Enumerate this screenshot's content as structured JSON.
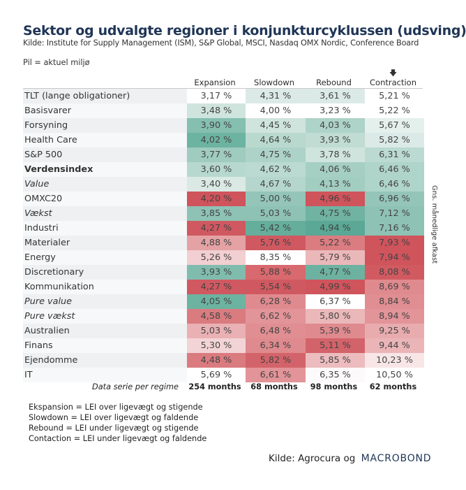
{
  "title": "Sektor og udvalgte regioner i konjunkturcyklussen (udsving)",
  "subtitle": "Kilde: Institute for Supply Management (ISM), S&P Global, MSCI, Nasdaq OMX Nordic, Conference Board",
  "note": "Pil = aktuel miljø",
  "current_regime_marker": {
    "icon": "arrow-down-icon",
    "glyph": "🡇",
    "column": "Contraction"
  },
  "vertical_label": "Gns. månedlige afkast",
  "chart_data": {
    "type": "table",
    "title": "Sektor og udvalgte regioner i konjunkturcyklussen (udsving)",
    "columns": [
      "Expansion",
      "Slowdown",
      "Rebound",
      "Contraction"
    ],
    "rows": [
      {
        "label": "TLT (lange obligationer)",
        "style": "normal",
        "values": [
          "3,17 %",
          "4,31 %",
          "3,61 %",
          "5,21 %"
        ],
        "colors": [
          "#ffffff",
          "#dbeae6",
          "#dbeae6",
          "#ffffff"
        ]
      },
      {
        "label": "Basisvarer",
        "style": "normal",
        "values": [
          "3,48 %",
          "4,00 %",
          "3,23 %",
          "5,22 %"
        ],
        "colors": [
          "#cfe4dd",
          "#ffffff",
          "#ffffff",
          "#ffffff"
        ]
      },
      {
        "label": "Forsyning",
        "style": "normal",
        "values": [
          "3,90 %",
          "4,45 %",
          "4,03 %",
          "5,67 %"
        ],
        "colors": [
          "#85bfb0",
          "#cfe4dd",
          "#aed3c8",
          "#e4f0ec"
        ]
      },
      {
        "label": "Health Care",
        "style": "normal",
        "values": [
          "4,02 %",
          "4,64 %",
          "3,93 %",
          "5,82 %"
        ],
        "colors": [
          "#6db3a1",
          "#b9d9cf",
          "#c0dcd3",
          "#dbeae6"
        ]
      },
      {
        "label": "S&P 500",
        "style": "normal",
        "values": [
          "3,77 %",
          "4,75 %",
          "3,78 %",
          "6,31 %"
        ],
        "colors": [
          "#a0cbbf",
          "#add2c7",
          "#cfe4dd",
          "#bbdad1"
        ]
      },
      {
        "label": "Verdensindex",
        "style": "bold",
        "values": [
          "3,60 %",
          "4,62 %",
          "4,06 %",
          "6,46 %"
        ],
        "colors": [
          "#b7d8ce",
          "#bbdad1",
          "#a6cfc3",
          "#afd4c9"
        ]
      },
      {
        "label": "Value",
        "style": "italic",
        "values": [
          "3,40 %",
          "4,67 %",
          "4,13 %",
          "6,46 %"
        ],
        "colors": [
          "#dae9e4",
          "#b5d6cc",
          "#a2cdc1",
          "#afd4c9"
        ]
      },
      {
        "label": "OMXC20",
        "style": "normal",
        "values": [
          "4,20 %",
          "5,00 %",
          "4,96 %",
          "6,96 %"
        ],
        "colors": [
          "#cf545c",
          "#94c5b8",
          "#cf545c",
          "#94c5b8"
        ]
      },
      {
        "label": "Vækst",
        "style": "italic",
        "values": [
          "3,85 %",
          "5,03 %",
          "4,75 %",
          "7,12 %"
        ],
        "colors": [
          "#8ec2b4",
          "#8ec2b4",
          "#70b3a2",
          "#8ec2b4"
        ]
      },
      {
        "label": "Industri",
        "style": "normal",
        "values": [
          "4,27 %",
          "5,42 %",
          "4,94 %",
          "7,16 %"
        ],
        "colors": [
          "#d05961",
          "#66ae9c",
          "#5ba896",
          "#8ec2b4"
        ]
      },
      {
        "label": "Materialer",
        "style": "normal",
        "values": [
          "4,88 %",
          "5,76 %",
          "5,22 %",
          "7,93 %"
        ],
        "colors": [
          "#e4a2a5",
          "#d05961",
          "#db7c80",
          "#cf545c"
        ]
      },
      {
        "label": "Energy",
        "style": "normal",
        "values": [
          "5,26 %",
          "8,35 %",
          "5,79 %",
          "7,94 %"
        ],
        "colors": [
          "#f2cfd1",
          "#ffffff",
          "#ebb8ba",
          "#cf545c"
        ]
      },
      {
        "label": "Discretionary",
        "style": "normal",
        "values": [
          "3,93 %",
          "5,88 %",
          "4,77 %",
          "8,08 %"
        ],
        "colors": [
          "#80bcad",
          "#d8696e",
          "#6db2a0",
          "#d15a61"
        ]
      },
      {
        "label": "Kommunikation",
        "style": "normal",
        "values": [
          "4,27 %",
          "5,54 %",
          "4,99 %",
          "8,69 %"
        ],
        "colors": [
          "#d05961",
          "#d05961",
          "#cf545c",
          "#df8a8e"
        ]
      },
      {
        "label": "Pure value",
        "style": "italic",
        "values": [
          "4,05 %",
          "6,28 %",
          "6,37 %",
          "8,84 %"
        ],
        "colors": [
          "#6db3a1",
          "#df8a8e",
          "#ffffff",
          "#e08e92"
        ]
      },
      {
        "label": "Pure vækst",
        "style": "italic",
        "values": [
          "4,58 %",
          "6,62 %",
          "5,80 %",
          "8,94 %"
        ],
        "colors": [
          "#da7b80",
          "#e29499",
          "#ebb8ba",
          "#e29499"
        ]
      },
      {
        "label": "Australien",
        "style": "normal",
        "values": [
          "5,03 %",
          "6,48 %",
          "5,39 %",
          "9,25 %"
        ],
        "colors": [
          "#e9b1b4",
          "#e08e92",
          "#df8a8e",
          "#e8acaf"
        ]
      },
      {
        "label": "Finans",
        "style": "normal",
        "values": [
          "5,30 %",
          "6,34 %",
          "5,11 %",
          "9,44 %"
        ],
        "colors": [
          "#f3d4d6",
          "#df8a8e",
          "#d3636a",
          "#ebb5b8"
        ]
      },
      {
        "label": "Ejendomme",
        "style": "normal",
        "values": [
          "4,48 %",
          "5,82 %",
          "5,85 %",
          "10,23 %"
        ],
        "colors": [
          "#da7b80",
          "#d3636a",
          "#ecbcbe",
          "#f8e6e7"
        ]
      },
      {
        "label": "IT",
        "style": "normal",
        "values": [
          "5,69 %",
          "6,61 %",
          "6,35 %",
          "10,50 %"
        ],
        "colors": [
          "#ffffff",
          "#e29499",
          "#fcfafa",
          "#ffffff"
        ]
      }
    ],
    "footer_label": "Data serie per regime",
    "months_per_regime": [
      "254 months",
      "68 months",
      "98 months",
      "62 months"
    ],
    "color_scale": {
      "low_return": "#cf545c",
      "mid": "#ffffff",
      "high_return": "#5ba896"
    }
  },
  "legend": [
    "Ekspansion = LEI over ligevægt og stigende",
    "Slowdown = LEI over ligevægt og faldende",
    "Rebound = LEI under ligevægt og stigende",
    "Contaction = LEI under ligevægt og faldende"
  ],
  "credit": {
    "prefix": "Kilde: Agrocura og",
    "brand": "MACROBOND"
  }
}
